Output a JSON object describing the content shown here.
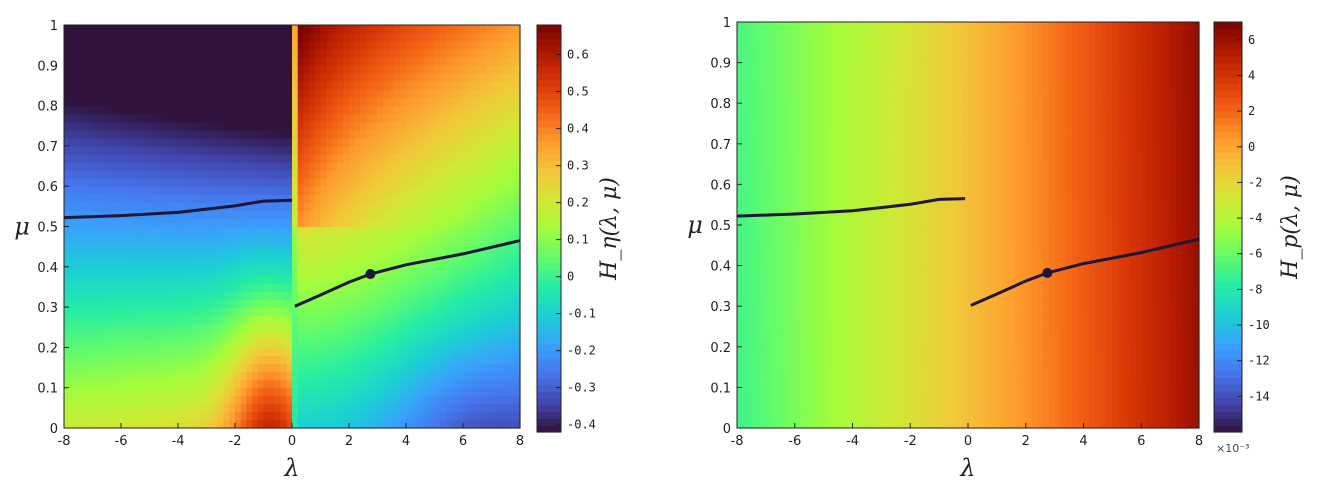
{
  "chart_data": [
    {
      "type": "heatmap",
      "name": "H_eta",
      "xlabel": "λ",
      "ylabel": "μ",
      "colorbar_label": "H_η(λ, μ)",
      "xlim": [
        -8,
        8
      ],
      "ylim": [
        0,
        1
      ],
      "xticks": [
        -8,
        -6,
        -4,
        -2,
        0,
        2,
        4,
        6,
        8
      ],
      "yticks": [
        0,
        0.1,
        0.2,
        0.3,
        0.4,
        0.5,
        0.6,
        0.7,
        0.8,
        0.9,
        1
      ],
      "clim": [
        -0.42,
        0.68
      ],
      "colorbar_ticks": [
        -0.4,
        -0.3,
        -0.2,
        -0.1,
        0,
        0.1,
        0.2,
        0.3,
        0.4,
        0.5,
        0.6
      ],
      "colorbar_tick_labels": [
        "-0.4",
        "-0.3",
        "-0.2",
        "-0.1",
        "0",
        "0.1",
        "0.2",
        "0.3",
        "0.4",
        "0.5",
        "0.6"
      ],
      "colormap": "turbo",
      "curve_left": [
        [
          -8,
          0.522
        ],
        [
          -6,
          0.527
        ],
        [
          -4,
          0.535
        ],
        [
          -2,
          0.551
        ],
        [
          -1,
          0.563
        ],
        [
          0,
          0.565
        ]
      ],
      "curve_right": [
        [
          0.1,
          0.302
        ],
        [
          1,
          0.33
        ],
        [
          2,
          0.362
        ],
        [
          2.75,
          0.382
        ],
        [
          4,
          0.405
        ],
        [
          6,
          0.432
        ],
        [
          8,
          0.465
        ]
      ],
      "marker": [
        2.75,
        0.382
      ]
    },
    {
      "type": "heatmap",
      "name": "H_p",
      "xlabel": "λ",
      "ylabel": "μ",
      "colorbar_label": "H_p(λ, μ)",
      "xlim": [
        -8,
        8
      ],
      "ylim": [
        0,
        1
      ],
      "xticks": [
        -8,
        -6,
        -4,
        -2,
        0,
        2,
        4,
        6,
        8
      ],
      "yticks": [
        0,
        0.1,
        0.2,
        0.3,
        0.4,
        0.5,
        0.6,
        0.7,
        0.8,
        0.9,
        1
      ],
      "clim": [
        -16,
        7
      ],
      "colorbar_ticks": [
        -14,
        -12,
        -10,
        -8,
        -6,
        -4,
        -2,
        0,
        2,
        4,
        6
      ],
      "colorbar_tick_labels": [
        "-14",
        "-12",
        "-10",
        "-8",
        "-6",
        "-4",
        "-2",
        "0",
        "2",
        "4",
        "6"
      ],
      "colorbar_scale": "×10⁻³",
      "colormap": "turbo",
      "curve_left": [
        [
          -8,
          0.522
        ],
        [
          -6,
          0.527
        ],
        [
          -4,
          0.535
        ],
        [
          -2,
          0.551
        ],
        [
          -1,
          0.563
        ],
        [
          -0.1,
          0.565
        ]
      ],
      "curve_right": [
        [
          0.1,
          0.302
        ],
        [
          1,
          0.33
        ],
        [
          2,
          0.362
        ],
        [
          2.75,
          0.382
        ],
        [
          4,
          0.405
        ],
        [
          6,
          0.432
        ],
        [
          8,
          0.465
        ]
      ],
      "marker": [
        2.75,
        0.382
      ]
    }
  ]
}
